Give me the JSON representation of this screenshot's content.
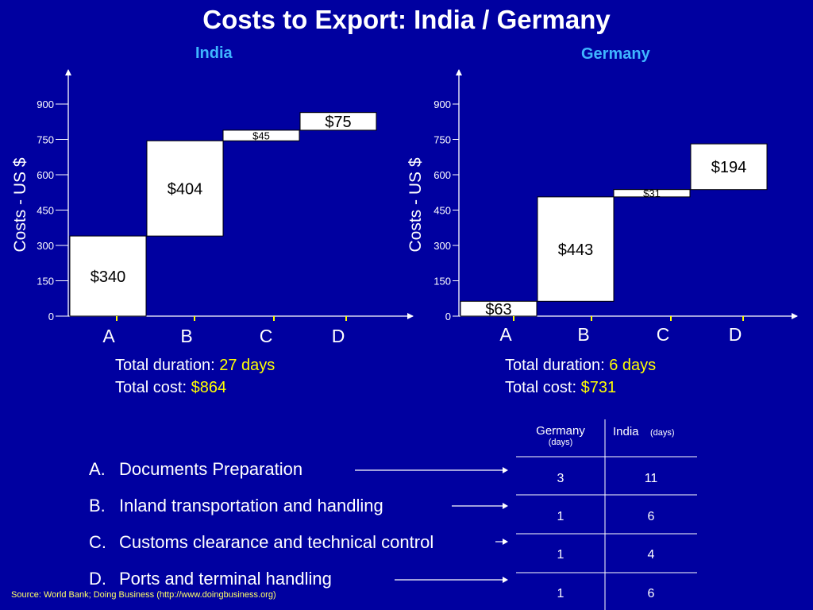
{
  "title": "Costs to Export: India / Germany",
  "chart_data": [
    {
      "type": "bar",
      "subtype": "waterfall",
      "title": "India",
      "ylabel": "Costs - US $",
      "ylim": [
        0,
        900
      ],
      "yticks": [
        0,
        150,
        300,
        450,
        600,
        750,
        900
      ],
      "categories": [
        "A",
        "B",
        "C",
        "D"
      ],
      "values": [
        340,
        404,
        45,
        75
      ],
      "labels": [
        "$340",
        "$404",
        "$45",
        "$75"
      ],
      "grid": false
    },
    {
      "type": "bar",
      "subtype": "waterfall",
      "title": "Germany",
      "ylabel": "Costs - US $",
      "ylim": [
        0,
        900
      ],
      "yticks": [
        0,
        150,
        300,
        450,
        600,
        750,
        900
      ],
      "categories": [
        "A",
        "B",
        "C",
        "D"
      ],
      "values": [
        63,
        443,
        31,
        194
      ],
      "labels": [
        "$63",
        "$443",
        "$31",
        "$194"
      ],
      "grid": false
    }
  ],
  "summaries": {
    "india": {
      "duration_label": "Total duration: ",
      "duration_value": "27 days",
      "cost_label": "Total cost: ",
      "cost_value": "$864"
    },
    "germany": {
      "duration_label": "Total duration: ",
      "duration_value": "6 days",
      "cost_label": "Total cost: ",
      "cost_value": "$731"
    }
  },
  "legend": [
    {
      "letter": "A.",
      "text": "Documents Preparation"
    },
    {
      "letter": "B.",
      "text": "Inland transportation and handling"
    },
    {
      "letter": "C.",
      "text": "Customs clearance and technical control"
    },
    {
      "letter": "D.",
      "text": "Ports and terminal handling"
    }
  ],
  "table": {
    "headers": [
      {
        "main": "Germany",
        "sub": "(days)"
      },
      {
        "main": "India",
        "sub": "(days)"
      }
    ],
    "rows": [
      [
        "3",
        "11"
      ],
      [
        "1",
        "6"
      ],
      [
        "1",
        "4"
      ],
      [
        "1",
        "6"
      ]
    ]
  },
  "source": "Source: World Bank; Doing Business (http://www.doingbusiness.org)",
  "colors": {
    "background": "#0000a0",
    "subtitle": "#3fb6ff",
    "highlight": "#ffff00",
    "bar_fill": "#ffffff"
  }
}
